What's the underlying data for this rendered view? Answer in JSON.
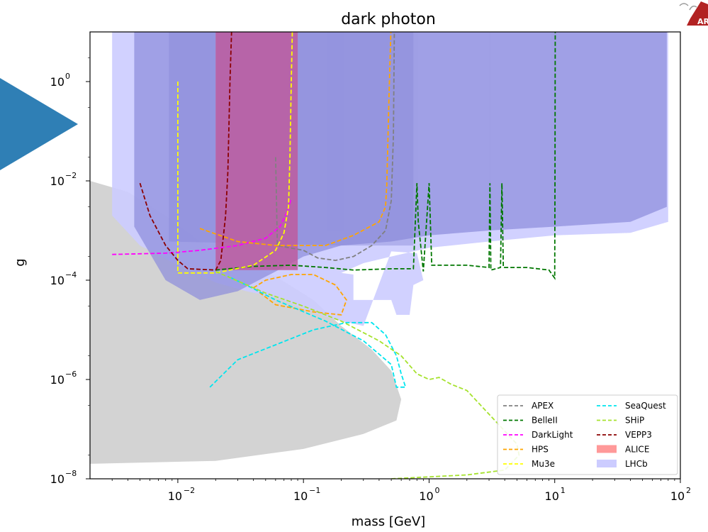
{
  "chart_data": {
    "type": "line",
    "title": "dark photon",
    "xlabel": "mass [GeV]",
    "ylabel": "g",
    "xscale": "log",
    "yscale": "log",
    "xlim": [
      0.002,
      100
    ],
    "ylim": [
      1e-08,
      10
    ],
    "x_ticks": [
      {
        "value": 0.01,
        "base": "10",
        "exp": "−2"
      },
      {
        "value": 0.1,
        "base": "10",
        "exp": "−1"
      },
      {
        "value": 1,
        "base": "10",
        "exp": "0"
      },
      {
        "value": 10,
        "base": "10",
        "exp": "1"
      },
      {
        "value": 100,
        "base": "10",
        "exp": "2"
      }
    ],
    "y_ticks": [
      {
        "value": 1e-08,
        "base": "10",
        "exp": "−8"
      },
      {
        "value": 1e-06,
        "base": "10",
        "exp": "−6"
      },
      {
        "value": 0.0001,
        "base": "10",
        "exp": "−4"
      },
      {
        "value": 0.01,
        "base": "10",
        "exp": "−2"
      },
      {
        "value": 1,
        "base": "10",
        "exp": "0"
      }
    ],
    "legend_position": "lower-right",
    "legend": [
      {
        "name": "APEX",
        "style": "dashed",
        "color": "#808080"
      },
      {
        "name": "SeaQuest",
        "style": "dashed",
        "color": "#00e5ee"
      },
      {
        "name": "BelleII",
        "style": "dashed",
        "color": "#007700"
      },
      {
        "name": "SHiP",
        "style": "dashed",
        "color": "#a6e22e"
      },
      {
        "name": "DarkLight",
        "style": "dashed",
        "color": "#ff00ff"
      },
      {
        "name": "VEPP3",
        "style": "dashed",
        "color": "#8b0000"
      },
      {
        "name": "HPS",
        "style": "dashed",
        "color": "#ffa500"
      },
      {
        "name": "ALICE",
        "style": "patch",
        "color": "#ff9999"
      },
      {
        "name": "Mu3e",
        "style": "dashed",
        "color": "#ffff00"
      },
      {
        "name": "LHCb",
        "style": "patch",
        "color": "#ccccff"
      }
    ],
    "excluded_region_color": "#d3d3d3",
    "series": [
      {
        "name": "APEX",
        "color": "#808080",
        "points": [
          [
            0.06,
            0.03
          ],
          [
            0.062,
            0.0005
          ],
          [
            0.1,
            0.0004
          ],
          [
            0.13,
            0.00028
          ],
          [
            0.18,
            0.00025
          ],
          [
            0.25,
            0.0003
          ],
          [
            0.35,
            0.0005
          ],
          [
            0.45,
            0.001
          ],
          [
            0.5,
            0.004
          ],
          [
            0.52,
            0.08
          ],
          [
            0.53,
            20
          ]
        ]
      },
      {
        "name": "BelleII",
        "color": "#007700",
        "points": [
          [
            0.02,
            0.00016
          ],
          [
            0.04,
            0.00019
          ],
          [
            0.08,
            0.0002
          ],
          [
            0.15,
            0.00018
          ],
          [
            0.25,
            0.00016
          ],
          [
            0.5,
            0.00017
          ],
          [
            0.75,
            0.00017
          ],
          [
            0.8,
            0.009
          ],
          [
            0.82,
            0.0015
          ],
          [
            0.9,
            0.00015
          ],
          [
            1.0,
            0.009
          ],
          [
            1.05,
            0.0002
          ],
          [
            2,
            0.0002
          ],
          [
            3,
            0.00018
          ],
          [
            3.05,
            0.009
          ],
          [
            3.1,
            0.00016
          ],
          [
            3.7,
            0.00018
          ],
          [
            3.8,
            0.009
          ],
          [
            3.9,
            0.00018
          ],
          [
            6,
            0.00018
          ],
          [
            9,
            0.00016
          ],
          [
            10,
            0.00011
          ],
          [
            10.05,
            0.01
          ],
          [
            10.1,
            30
          ]
        ]
      },
      {
        "name": "DarkLight",
        "color": "#ff00ff",
        "points": [
          [
            0.003,
            0.00033
          ],
          [
            0.008,
            0.00035
          ],
          [
            0.015,
            0.0004
          ],
          [
            0.03,
            0.0005
          ],
          [
            0.05,
            0.0007
          ],
          [
            0.065,
            0.0012
          ],
          [
            0.075,
            0.0025
          ],
          [
            0.08,
            0.0045
          ]
        ]
      },
      {
        "name": "HPS",
        "color": "#ffa500",
        "points": [
          [
            0.015,
            0.0011
          ],
          [
            0.03,
            0.0006
          ],
          [
            0.06,
            0.0005
          ],
          [
            0.1,
            0.0005
          ],
          [
            0.15,
            0.0005
          ],
          [
            0.25,
            0.0008
          ],
          [
            0.4,
            0.0015
          ],
          [
            0.45,
            0.003
          ],
          [
            0.46,
            0.008
          ],
          [
            0.48,
            0.5
          ],
          [
            0.5,
            20
          ]
        ]
      },
      {
        "name": "HPS",
        "color": "#ffa500",
        "points": [
          [
            0.04,
            7e-05
          ],
          [
            0.05,
            0.0001
          ],
          [
            0.08,
            0.00013
          ],
          [
            0.12,
            0.00013
          ],
          [
            0.18,
            8e-05
          ],
          [
            0.22,
            4e-05
          ],
          [
            0.2,
            2e-05
          ],
          [
            0.12,
            2.3e-05
          ],
          [
            0.06,
            3.2e-05
          ],
          [
            0.04,
            7e-05
          ]
        ]
      },
      {
        "name": "Mu3e",
        "color": "#ffff00",
        "points": [
          [
            0.01,
            1.0
          ],
          [
            0.01,
            0.00014
          ],
          [
            0.02,
            0.00014
          ],
          [
            0.04,
            0.0002
          ],
          [
            0.06,
            0.0004
          ],
          [
            0.07,
            0.0009
          ],
          [
            0.076,
            0.003
          ],
          [
            0.078,
            0.03
          ],
          [
            0.08,
            1.0
          ],
          [
            0.082,
            20
          ]
        ]
      },
      {
        "name": "SeaQuest",
        "color": "#00e5ee",
        "points": [
          [
            0.018,
            7e-07
          ],
          [
            0.03,
            2.5e-06
          ],
          [
            0.06,
            5e-06
          ],
          [
            0.12,
            1e-05
          ],
          [
            0.22,
            1.4e-05
          ],
          [
            0.35,
            1.4e-05
          ],
          [
            0.45,
            8e-06
          ],
          [
            0.55,
            3e-06
          ],
          [
            0.6,
            1.3e-06
          ],
          [
            0.65,
            7e-07
          ],
          [
            0.55,
            7e-07
          ],
          [
            0.5,
            2e-06
          ],
          [
            0.3,
            6e-06
          ],
          [
            0.15,
            1.5e-05
          ],
          [
            0.06,
            4e-05
          ],
          [
            0.035,
            8e-05
          ],
          [
            0.025,
            0.00012
          ]
        ]
      },
      {
        "name": "SHiP",
        "color": "#a6e22e",
        "points": [
          [
            0.02,
            0.00015
          ],
          [
            0.05,
            5.5e-05
          ],
          [
            0.1,
            3e-05
          ],
          [
            0.2,
            1.5e-05
          ],
          [
            0.4,
            6e-06
          ],
          [
            0.6,
            3e-06
          ],
          [
            0.8,
            1.3e-06
          ],
          [
            1.0,
            1e-06
          ],
          [
            1.2,
            1.1e-06
          ],
          [
            1.5,
            8e-07
          ],
          [
            2,
            6e-07
          ],
          [
            3,
            2e-07
          ],
          [
            5,
            5e-08
          ],
          [
            5.2,
            3e-08
          ],
          [
            4,
            1.5e-08
          ],
          [
            2,
            1.2e-08
          ],
          [
            0.5,
            1e-08
          ]
        ]
      },
      {
        "name": "VEPP3",
        "color": "#8b0000",
        "points": [
          [
            0.005,
            0.009
          ],
          [
            0.006,
            0.002
          ],
          [
            0.008,
            0.0005
          ],
          [
            0.01,
            0.00025
          ],
          [
            0.012,
            0.00017
          ],
          [
            0.02,
            0.00016
          ],
          [
            0.022,
            0.00025
          ],
          [
            0.024,
            0.002
          ],
          [
            0.025,
            0.015
          ],
          [
            0.026,
            1.0
          ],
          [
            0.027,
            20
          ]
        ]
      }
    ]
  },
  "logo": {
    "text": "ARK"
  }
}
